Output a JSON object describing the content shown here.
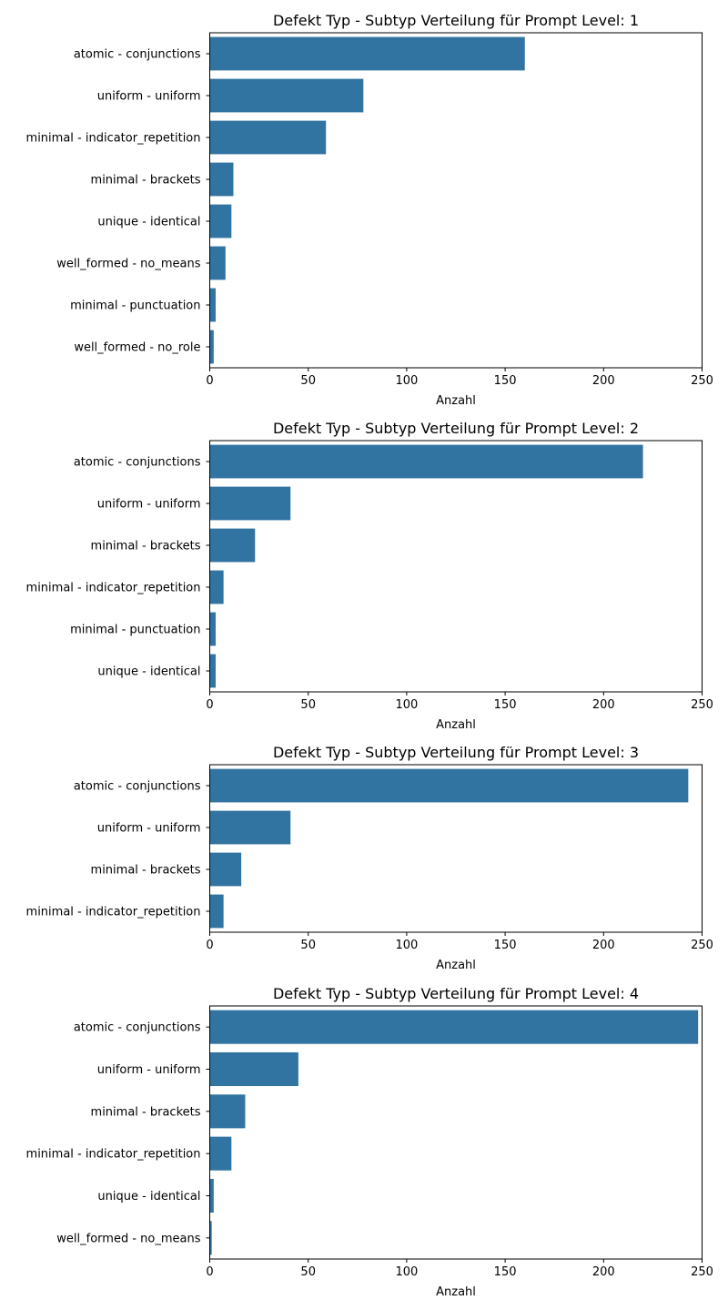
{
  "chart_data": [
    {
      "type": "bar",
      "orientation": "horizontal",
      "title": "Defekt Typ - Subtyp Verteilung für Prompt Level: 1",
      "xlabel": "Anzahl",
      "ylabel": "",
      "xlim": [
        0,
        250
      ],
      "xticks": [
        "0",
        "50",
        "100",
        "150",
        "200",
        "250"
      ],
      "categories": [
        "atomic - conjunctions",
        "uniform - uniform",
        "minimal - indicator_repetition",
        "minimal - brackets",
        "unique - identical",
        "well_formed - no_means",
        "minimal - punctuation",
        "well_formed - no_role"
      ],
      "values": [
        160,
        78,
        59,
        12,
        11,
        8,
        3,
        2
      ],
      "color": "#3274a1",
      "grid": false
    },
    {
      "type": "bar",
      "orientation": "horizontal",
      "title": "Defekt Typ - Subtyp Verteilung für Prompt Level: 2",
      "xlabel": "Anzahl",
      "ylabel": "",
      "xlim": [
        0,
        250
      ],
      "xticks": [
        "0",
        "50",
        "100",
        "150",
        "200",
        "250"
      ],
      "categories": [
        "atomic - conjunctions",
        "uniform - uniform",
        "minimal - brackets",
        "minimal - indicator_repetition",
        "minimal - punctuation",
        "unique - identical"
      ],
      "values": [
        220,
        41,
        23,
        7,
        3,
        3
      ],
      "color": "#3274a1",
      "grid": false
    },
    {
      "type": "bar",
      "orientation": "horizontal",
      "title": "Defekt Typ - Subtyp Verteilung für Prompt Level: 3",
      "xlabel": "Anzahl",
      "ylabel": "",
      "xlim": [
        0,
        250
      ],
      "xticks": [
        "0",
        "50",
        "100",
        "150",
        "200",
        "250"
      ],
      "categories": [
        "atomic - conjunctions",
        "uniform - uniform",
        "minimal - brackets",
        "minimal - indicator_repetition"
      ],
      "values": [
        243,
        41,
        16,
        7
      ],
      "color": "#3274a1",
      "grid": false
    },
    {
      "type": "bar",
      "orientation": "horizontal",
      "title": "Defekt Typ - Subtyp Verteilung für Prompt Level: 4",
      "xlabel": "Anzahl",
      "ylabel": "",
      "xlim": [
        0,
        250
      ],
      "xticks": [
        "0",
        "50",
        "100",
        "150",
        "200",
        "250"
      ],
      "categories": [
        "atomic - conjunctions",
        "uniform - uniform",
        "minimal - brackets",
        "minimal - indicator_repetition",
        "unique - identical",
        "well_formed - no_means"
      ],
      "values": [
        248,
        45,
        18,
        11,
        2,
        1
      ],
      "color": "#3274a1",
      "grid": false
    }
  ]
}
